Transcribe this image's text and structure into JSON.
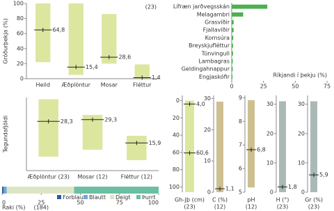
{
  "chart_data": [
    {
      "type": "range",
      "ylabel": "Gróðurþekja (%)",
      "annotation": "(23)",
      "categories": [
        "Heild",
        "Æðplöntur",
        "Mosar",
        "Fléttur"
      ],
      "lows": [
        22,
        5,
        20,
        0.5
      ],
      "highs": [
        100,
        100,
        86,
        19
      ],
      "values": [
        64.8,
        15.4,
        28.6,
        1.4
      ],
      "value_labels": [
        "64,8",
        "15,4",
        "28,6",
        "1,4"
      ],
      "ylim": [
        0,
        100
      ],
      "yticks": [
        0,
        20,
        40,
        60,
        80,
        100
      ],
      "color": "#dde69e",
      "marker_color": "#222222"
    },
    {
      "type": "barh",
      "xlabel": "Ríkjandi í þekju (%)",
      "categories": [
        "Lífræn jarðvegsskán",
        "Melagambri",
        "Grasvíðir",
        "Fjallavíðir",
        "Kornsúra",
        "Breyskjufléttur",
        "Túnvingull",
        "Lambagras",
        "Geldingahnappur",
        "Engjaskófir"
      ],
      "values": [
        28,
        9,
        1.5,
        1.5,
        1.2,
        1,
        1,
        0.8,
        0.8,
        0.6
      ],
      "xlim": [
        0,
        75
      ],
      "xticks": [
        0,
        25,
        50,
        75
      ],
      "color": "#4caf50"
    },
    {
      "type": "range",
      "ylabel": "Tegundafjöldi",
      "categories": [
        "Æðplöntur (23)",
        "Mosar (12)",
        "Fléttur (12)"
      ],
      "lows": [
        8,
        12,
        6
      ],
      "highs": [
        41,
        32,
        20
      ],
      "values": [
        28.3,
        29.3,
        15.9
      ],
      "value_labels": [
        "28,3",
        "29,3",
        "15,9"
      ],
      "ylim": [
        0,
        42
      ],
      "color": "#dde69e",
      "marker_color": "#222222"
    },
    {
      "type": "stacked",
      "xlabel": "Raki (%)",
      "annotation": "(184)",
      "series": [
        {
          "name": "Forblautt",
          "color": "#2e5a9c",
          "values": [
            1
          ]
        },
        {
          "name": "Blautt",
          "color": "#6fa8dc",
          "values": [
            2
          ]
        },
        {
          "name": "Deigt",
          "color": "#dde6c4",
          "values": [
            43
          ]
        },
        {
          "name": "Þurrt",
          "color": "#6bbfa3",
          "values": [
            54
          ]
        }
      ],
      "xlim": [
        0,
        100
      ],
      "xticks": [
        0,
        25,
        50,
        75,
        100
      ]
    },
    {
      "type": "range",
      "xlabel": "Gh-Jþ (cm)",
      "annotation": "(23)",
      "lows": [
        0,
        12
      ],
      "highs": [
        12,
        106
      ],
      "values": [
        4,
        60.6
      ],
      "value_labels": [
        "4,0",
        "60,6"
      ],
      "ylim": [
        -6,
        106
      ],
      "yticks": [
        0,
        20,
        40,
        60,
        80,
        100
      ],
      "inverted": true,
      "color": "#dde69e",
      "marker_color": "#222222"
    },
    {
      "type": "range",
      "xlabel": "C (%)",
      "annotation": "(12)",
      "lows": [
        0
      ],
      "highs": [
        29
      ],
      "values": [
        1.1
      ],
      "value_labels": [
        "1,1"
      ],
      "ylim": [
        0,
        31
      ],
      "yticks": [
        0,
        10,
        20,
        30
      ],
      "color": "#cdbf90",
      "marker_color": "#222222"
    },
    {
      "type": "range",
      "xlabel": "pH",
      "annotation": "(12)",
      "lows": [
        5.2
      ],
      "highs": [
        8.9
      ],
      "values": [
        6.8
      ],
      "value_labels": [
        "6,8"
      ],
      "ylim": [
        5,
        9.1
      ],
      "yticks": [
        5,
        6,
        7,
        8,
        9
      ],
      "color": "#cdbf90",
      "marker_color": "#222222"
    },
    {
      "type": "range",
      "xlabel": "H (°)",
      "annotation": "(23)",
      "lows": [
        0
      ],
      "highs": [
        31
      ],
      "values": [
        1.8
      ],
      "value_labels": [
        "1,8"
      ],
      "ylim": [
        0,
        33
      ],
      "yticks": [
        0,
        10,
        20,
        30
      ],
      "color": "#aab9b6",
      "marker_color": "#222222"
    },
    {
      "type": "range",
      "xlabel": "Gr (%)",
      "annotation": "(23)",
      "lows": [
        0
      ],
      "highs": [
        31
      ],
      "values": [
        5.9
      ],
      "value_labels": [
        "5,9"
      ],
      "ylim": [
        0,
        33
      ],
      "yticks": [
        0,
        10,
        20,
        30
      ],
      "color": "#aab9b6",
      "marker_color": "#222222"
    }
  ]
}
